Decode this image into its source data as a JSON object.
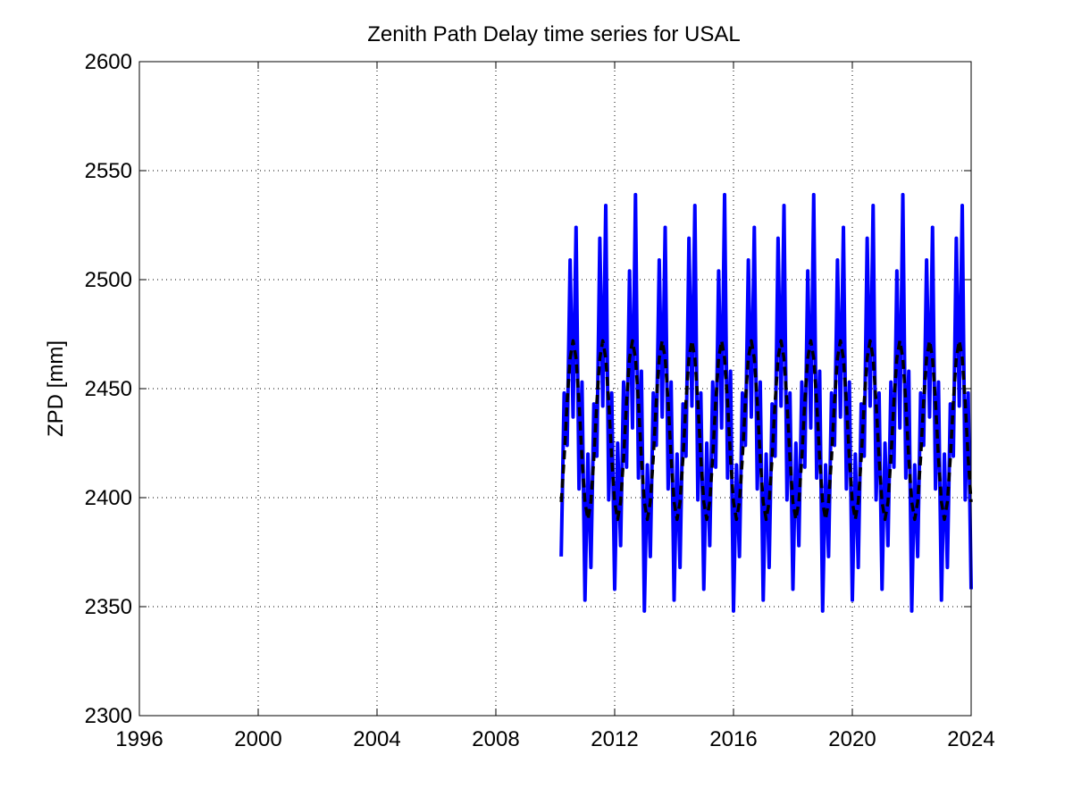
{
  "chart_data": {
    "type": "line",
    "title": "Zenith Path Delay time series for USAL",
    "ylabel": "ZPD [mm]",
    "xlim": [
      1996,
      2024
    ],
    "xticks": [
      1996,
      2000,
      2004,
      2008,
      2012,
      2016,
      2020,
      2024
    ],
    "ylim": [
      2300,
      2600
    ],
    "yticks": [
      2300,
      2350,
      2400,
      2450,
      2500,
      2550,
      2600
    ],
    "grid": true,
    "x": [
      2010.2,
      2010.3,
      2010.4,
      2010.5,
      2010.6,
      2010.7,
      2010.8,
      2010.9,
      2011.0,
      2011.1,
      2011.2,
      2011.3,
      2011.4,
      2011.5,
      2011.6,
      2011.7,
      2011.8,
      2011.9,
      2012.0,
      2012.1,
      2012.2,
      2012.3,
      2012.4,
      2012.5,
      2012.6,
      2012.7,
      2012.8,
      2012.9,
      2013.0,
      2013.1,
      2013.2,
      2013.3,
      2013.4,
      2013.5,
      2013.6,
      2013.7,
      2013.8,
      2013.9,
      2014.0,
      2014.1,
      2014.2,
      2014.3,
      2014.4,
      2014.5,
      2014.6,
      2014.7,
      2014.8,
      2014.9,
      2015.0,
      2015.1,
      2015.2,
      2015.3,
      2015.4,
      2015.5,
      2015.6,
      2015.7,
      2015.8,
      2015.9,
      2016.0,
      2016.1,
      2016.2,
      2016.3,
      2016.4,
      2016.5,
      2016.6,
      2016.7,
      2016.8,
      2016.9,
      2017.0,
      2017.1,
      2017.2,
      2017.3,
      2017.4,
      2017.5,
      2017.6,
      2017.7,
      2017.8,
      2017.9,
      2018.0,
      2018.1,
      2018.2,
      2018.3,
      2018.4,
      2018.5,
      2018.6,
      2018.7,
      2018.8,
      2018.9,
      2019.0,
      2019.1,
      2019.2,
      2019.3,
      2019.4,
      2019.5,
      2019.6,
      2019.7,
      2019.8,
      2019.9,
      2020.0,
      2020.1,
      2020.2,
      2020.3,
      2020.4,
      2020.5,
      2020.6,
      2020.7,
      2020.8,
      2020.9,
      2021.0,
      2021.1,
      2021.2,
      2021.3,
      2021.4,
      2021.5,
      2021.6,
      2021.7,
      2021.8,
      2021.9,
      2022.0,
      2022.1,
      2022.2,
      2022.3,
      2022.4,
      2022.5,
      2022.6,
      2022.7,
      2022.8,
      2022.9,
      2023.0,
      2023.1,
      2023.2,
      2023.3,
      2023.4,
      2023.5,
      2023.6,
      2023.7,
      2023.8,
      2023.9,
      2024.0
    ],
    "series": [
      {
        "color": "#0000ff",
        "values": [
          2373,
          2448,
          2424,
          2509,
          2437,
          2524,
          2404,
          2453,
          2353,
          2420,
          2368,
          2443,
          2419,
          2519,
          2442,
          2534,
          2399,
          2448,
          2358,
          2425,
          2378,
          2453,
          2414,
          2504,
          2432,
          2539,
          2409,
          2458,
          2348,
          2415,
          2373,
          2448,
          2424,
          2509,
          2437,
          2524,
          2404,
          2453,
          2353,
          2420,
          2368,
          2443,
          2419,
          2519,
          2442,
          2534,
          2399,
          2448,
          2358,
          2425,
          2378,
          2453,
          2414,
          2504,
          2432,
          2539,
          2409,
          2458,
          2348,
          2415,
          2373,
          2448,
          2424,
          2509,
          2437,
          2524,
          2404,
          2453,
          2353,
          2420,
          2368,
          2443,
          2419,
          2519,
          2442,
          2534,
          2399,
          2448,
          2358,
          2425,
          2378,
          2453,
          2414,
          2504,
          2432,
          2539,
          2409,
          2458,
          2348,
          2415,
          2373,
          2448,
          2424,
          2509,
          2437,
          2524,
          2404,
          2453,
          2353,
          2420,
          2368,
          2443,
          2419,
          2519,
          2442,
          2534,
          2399,
          2448,
          2358,
          2425,
          2378,
          2453,
          2414,
          2504,
          2432,
          2539,
          2409,
          2458,
          2348,
          2415,
          2373,
          2448,
          2424,
          2509,
          2437,
          2524,
          2404,
          2453,
          2353,
          2420,
          2368,
          2443,
          2419,
          2519,
          2442,
          2534,
          2399,
          2448,
          2358
        ]
      },
      {
        "color": "#000000",
        "dashed": true,
        "values": [
          2398,
          2418,
          2444,
          2464,
          2472,
          2464,
          2444,
          2418,
          2398,
          2390,
          2398,
          2418,
          2444,
          2464,
          2472,
          2464,
          2444,
          2418,
          2398,
          2390,
          2398,
          2418,
          2444,
          2464,
          2472,
          2464,
          2444,
          2418,
          2398,
          2390,
          2398,
          2418,
          2444,
          2464,
          2472,
          2464,
          2444,
          2418,
          2398,
          2390,
          2398,
          2418,
          2444,
          2464,
          2472,
          2464,
          2444,
          2418,
          2398,
          2390,
          2398,
          2418,
          2444,
          2464,
          2472,
          2464,
          2444,
          2418,
          2398,
          2390,
          2398,
          2418,
          2444,
          2464,
          2472,
          2464,
          2444,
          2418,
          2398,
          2390,
          2398,
          2418,
          2444,
          2464,
          2472,
          2464,
          2444,
          2418,
          2398,
          2390,
          2398,
          2418,
          2444,
          2464,
          2472,
          2464,
          2444,
          2418,
          2398,
          2390,
          2398,
          2418,
          2444,
          2464,
          2472,
          2464,
          2444,
          2418,
          2398,
          2390,
          2398,
          2418,
          2444,
          2464,
          2472,
          2464,
          2444,
          2418,
          2398,
          2390,
          2398,
          2418,
          2444,
          2464,
          2472,
          2464,
          2444,
          2418,
          2398,
          2390,
          2398,
          2418,
          2444,
          2464,
          2472,
          2464,
          2444,
          2418,
          2398,
          2390,
          2398,
          2418,
          2444,
          2464,
          2472,
          2464,
          2444,
          2418,
          2398
        ]
      }
    ]
  }
}
